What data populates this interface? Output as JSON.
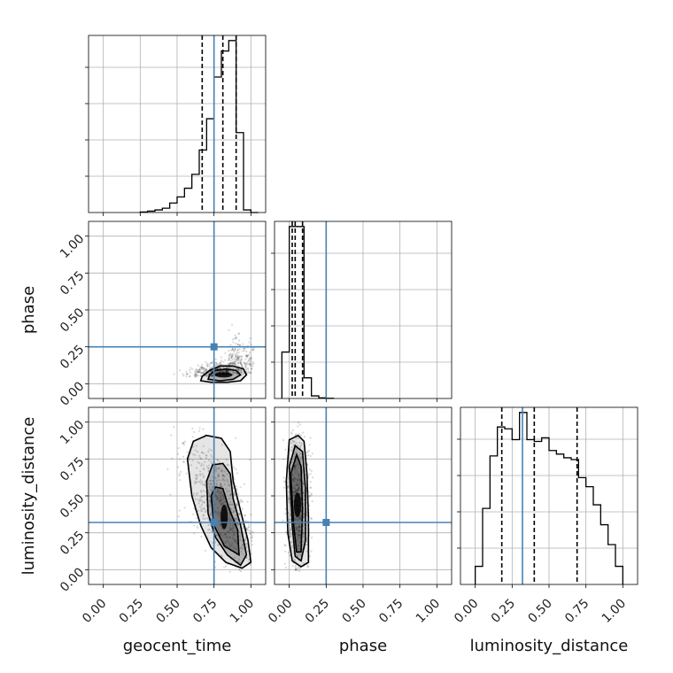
{
  "chart_data": {
    "type": "corner",
    "parameters": [
      "geocent_time",
      "phase",
      "luminosity_distance"
    ],
    "axis_range": [
      -0.1,
      1.1
    ],
    "tick_values": [
      0.0,
      0.25,
      0.5,
      0.75,
      1.0
    ],
    "tick_labels": [
      "0.00",
      "0.25",
      "0.50",
      "0.75",
      "1.00"
    ],
    "grid": true,
    "colors": {
      "truth": "#4682b4",
      "histogram": "#000000",
      "grid": "#b0b0b0",
      "density": "#000000"
    },
    "truths": {
      "geocent_time": 0.75,
      "phase": 0.25,
      "luminosity_distance": 0.32
    },
    "quantiles": {
      "geocent_time": [
        0.67,
        0.81,
        0.9
      ],
      "phase": [
        0.02,
        0.04,
        0.09
      ],
      "luminosity_distance": [
        0.18,
        0.4,
        0.69
      ]
    },
    "histograms": {
      "geocent_time": {
        "bin_edges": [
          0.25,
          0.3,
          0.35,
          0.4,
          0.45,
          0.5,
          0.55,
          0.6,
          0.65,
          0.7,
          0.75,
          0.8,
          0.85,
          0.9,
          0.95,
          1.0,
          1.05
        ],
        "counts": [
          0.003,
          0.008,
          0.015,
          0.025,
          0.055,
          0.09,
          0.14,
          0.22,
          0.36,
          0.54,
          0.78,
          0.93,
          0.99,
          0.46,
          0.015,
          0.0
        ]
      },
      "phase": {
        "bin_edges": [
          -0.05,
          0.0,
          0.05,
          0.1,
          0.15,
          0.2,
          0.25,
          0.3
        ],
        "counts": [
          0.27,
          1.0,
          1.0,
          0.12,
          0.015,
          0.004,
          0.001
        ]
      },
      "luminosity_distance": {
        "bin_edges": [
          0.0,
          0.05,
          0.1,
          0.15,
          0.2,
          0.25,
          0.3,
          0.35,
          0.4,
          0.45,
          0.5,
          0.55,
          0.6,
          0.65,
          0.7,
          0.75,
          0.8,
          0.85,
          0.9,
          0.95,
          1.0
        ],
        "counts": [
          0.1,
          0.42,
          0.71,
          0.87,
          0.86,
          0.8,
          0.95,
          0.8,
          0.79,
          0.81,
          0.74,
          0.72,
          0.7,
          0.69,
          0.59,
          0.54,
          0.44,
          0.33,
          0.22,
          0.1
        ]
      }
    },
    "joint": {
      "phase_vs_geocent_time": {
        "x": "geocent_time",
        "y": "phase",
        "sample_mean": [
          0.84,
          0.06
        ],
        "sample_spread": [
          0.12,
          0.03
        ],
        "contours": [
          [
            [
              0.66,
              0.02
            ],
            [
              0.73,
              0.01
            ],
            [
              0.84,
              0.01
            ],
            [
              0.93,
              0.02
            ],
            [
              0.97,
              0.06
            ],
            [
              0.95,
              0.1
            ],
            [
              0.88,
              0.12
            ],
            [
              0.79,
              0.12
            ],
            [
              0.72,
              0.09
            ],
            [
              0.67,
              0.05
            ]
          ],
          [
            [
              0.71,
              0.03
            ],
            [
              0.79,
              0.02
            ],
            [
              0.88,
              0.03
            ],
            [
              0.93,
              0.06
            ],
            [
              0.9,
              0.09
            ],
            [
              0.83,
              0.1
            ],
            [
              0.76,
              0.09
            ],
            [
              0.72,
              0.06
            ]
          ]
        ]
      },
      "luminosity_distance_vs_geocent_time": {
        "x": "geocent_time",
        "y": "luminosity_distance",
        "sample_mean": [
          0.84,
          0.4
        ],
        "sample_spread": [
          0.11,
          0.24
        ],
        "contours": [
          [
            [
              0.57,
              0.75
            ],
            [
              0.6,
              0.5
            ],
            [
              0.66,
              0.3
            ],
            [
              0.73,
              0.15
            ],
            [
              0.83,
              0.05
            ],
            [
              0.94,
              0.01
            ],
            [
              1.0,
              0.05
            ],
            [
              0.98,
              0.2
            ],
            [
              0.93,
              0.4
            ],
            [
              0.88,
              0.6
            ],
            [
              0.86,
              0.8
            ],
            [
              0.8,
              0.89
            ],
            [
              0.7,
              0.91
            ],
            [
              0.61,
              0.87
            ]
          ],
          [
            [
              0.7,
              0.6
            ],
            [
              0.71,
              0.38
            ],
            [
              0.76,
              0.22
            ],
            [
              0.84,
              0.1
            ],
            [
              0.93,
              0.03
            ],
            [
              0.97,
              0.1
            ],
            [
              0.93,
              0.3
            ],
            [
              0.88,
              0.48
            ],
            [
              0.86,
              0.65
            ],
            [
              0.81,
              0.72
            ],
            [
              0.74,
              0.71
            ]
          ],
          [
            [
              0.73,
              0.5
            ],
            [
              0.75,
              0.3
            ],
            [
              0.82,
              0.16
            ],
            [
              0.92,
              0.1
            ],
            [
              0.91,
              0.27
            ],
            [
              0.85,
              0.42
            ],
            [
              0.81,
              0.55
            ],
            [
              0.76,
              0.56
            ]
          ]
        ]
      },
      "luminosity_distance_vs_phase": {
        "x": "phase",
        "y": "luminosity_distance",
        "sample_mean": [
          0.06,
          0.45
        ],
        "sample_spread": [
          0.04,
          0.25
        ],
        "contours": [
          [
            [
              -0.02,
              0.6
            ],
            [
              -0.01,
              0.25
            ],
            [
              0.02,
              0.06
            ],
            [
              0.08,
              0.02
            ],
            [
              0.13,
              0.05
            ],
            [
              0.13,
              0.35
            ],
            [
              0.12,
              0.65
            ],
            [
              0.1,
              0.87
            ],
            [
              0.06,
              0.91
            ],
            [
              0.0,
              0.88
            ]
          ],
          [
            [
              0.0,
              0.7
            ],
            [
              0.02,
              0.3
            ],
            [
              0.04,
              0.09
            ],
            [
              0.08,
              0.06
            ],
            [
              0.11,
              0.2
            ],
            [
              0.11,
              0.55
            ],
            [
              0.09,
              0.8
            ],
            [
              0.04,
              0.84
            ]
          ],
          [
            [
              0.01,
              0.65
            ],
            [
              0.03,
              0.3
            ],
            [
              0.05,
              0.12
            ],
            [
              0.08,
              0.12
            ],
            [
              0.09,
              0.4
            ],
            [
              0.08,
              0.7
            ],
            [
              0.05,
              0.78
            ]
          ]
        ]
      }
    }
  }
}
